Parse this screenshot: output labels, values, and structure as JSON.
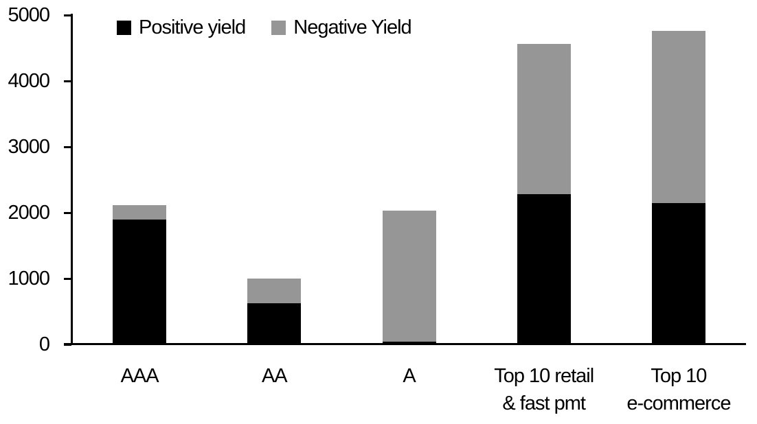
{
  "chart_data": {
    "type": "bar",
    "stacked": true,
    "title": "",
    "xlabel": "",
    "ylabel": "",
    "categories": [
      "AAA",
      "AA",
      "A",
      "Top 10 retail\n& fast pmt",
      "Top 10\ne-commerce"
    ],
    "series": [
      {
        "name": "Positive yield",
        "color": "#000000",
        "values": [
          1900,
          620,
          40,
          2280,
          2150
        ]
      },
      {
        "name": "Negative Yield",
        "color": "#969696",
        "values": [
          210,
          380,
          1990,
          2280,
          2610
        ]
      }
    ],
    "ylim": [
      0,
      5000
    ],
    "yticks": [
      0,
      1000,
      2000,
      3000,
      4000,
      5000
    ],
    "grid": false,
    "legend_position": "top"
  }
}
